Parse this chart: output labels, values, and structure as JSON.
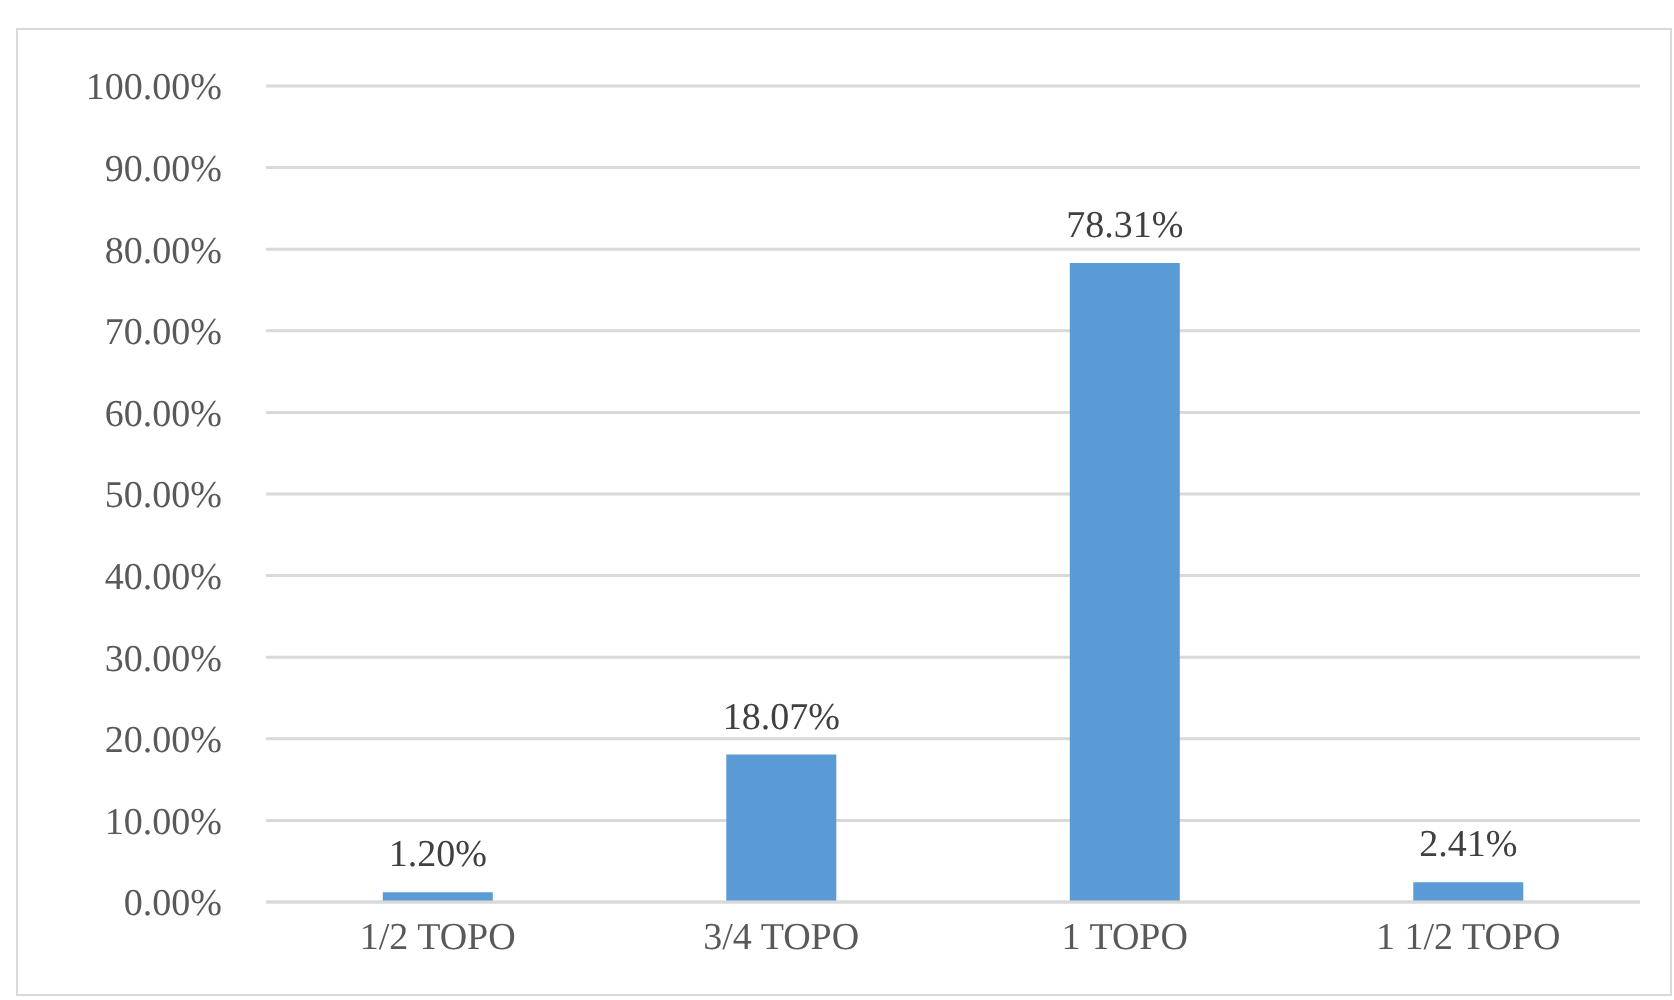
{
  "chart_data": {
    "type": "bar",
    "categories": [
      "1/2 TOPO",
      "3/4 TOPO",
      "1 TOPO",
      "1 1/2 TOPO"
    ],
    "values": [
      1.2,
      18.07,
      78.31,
      2.41
    ],
    "value_labels": [
      "1.20%",
      "18.07%",
      "78.31%",
      "2.41%"
    ],
    "color": "#5b9bd5",
    "ylim": [
      0,
      100
    ],
    "yticks": [
      {
        "value": 0,
        "label": "0.00%"
      },
      {
        "value": 10,
        "label": "10.00%"
      },
      {
        "value": 20,
        "label": "20.00%"
      },
      {
        "value": 30,
        "label": "30.00%"
      },
      {
        "value": 40,
        "label": "40.00%"
      },
      {
        "value": 50,
        "label": "50.00%"
      },
      {
        "value": 60,
        "label": "60.00%"
      },
      {
        "value": 70,
        "label": "70.00%"
      },
      {
        "value": 80,
        "label": "80.00%"
      },
      {
        "value": 90,
        "label": "90.00%"
      },
      {
        "value": 100,
        "label": "100.00%"
      }
    ],
    "grid": "y"
  }
}
